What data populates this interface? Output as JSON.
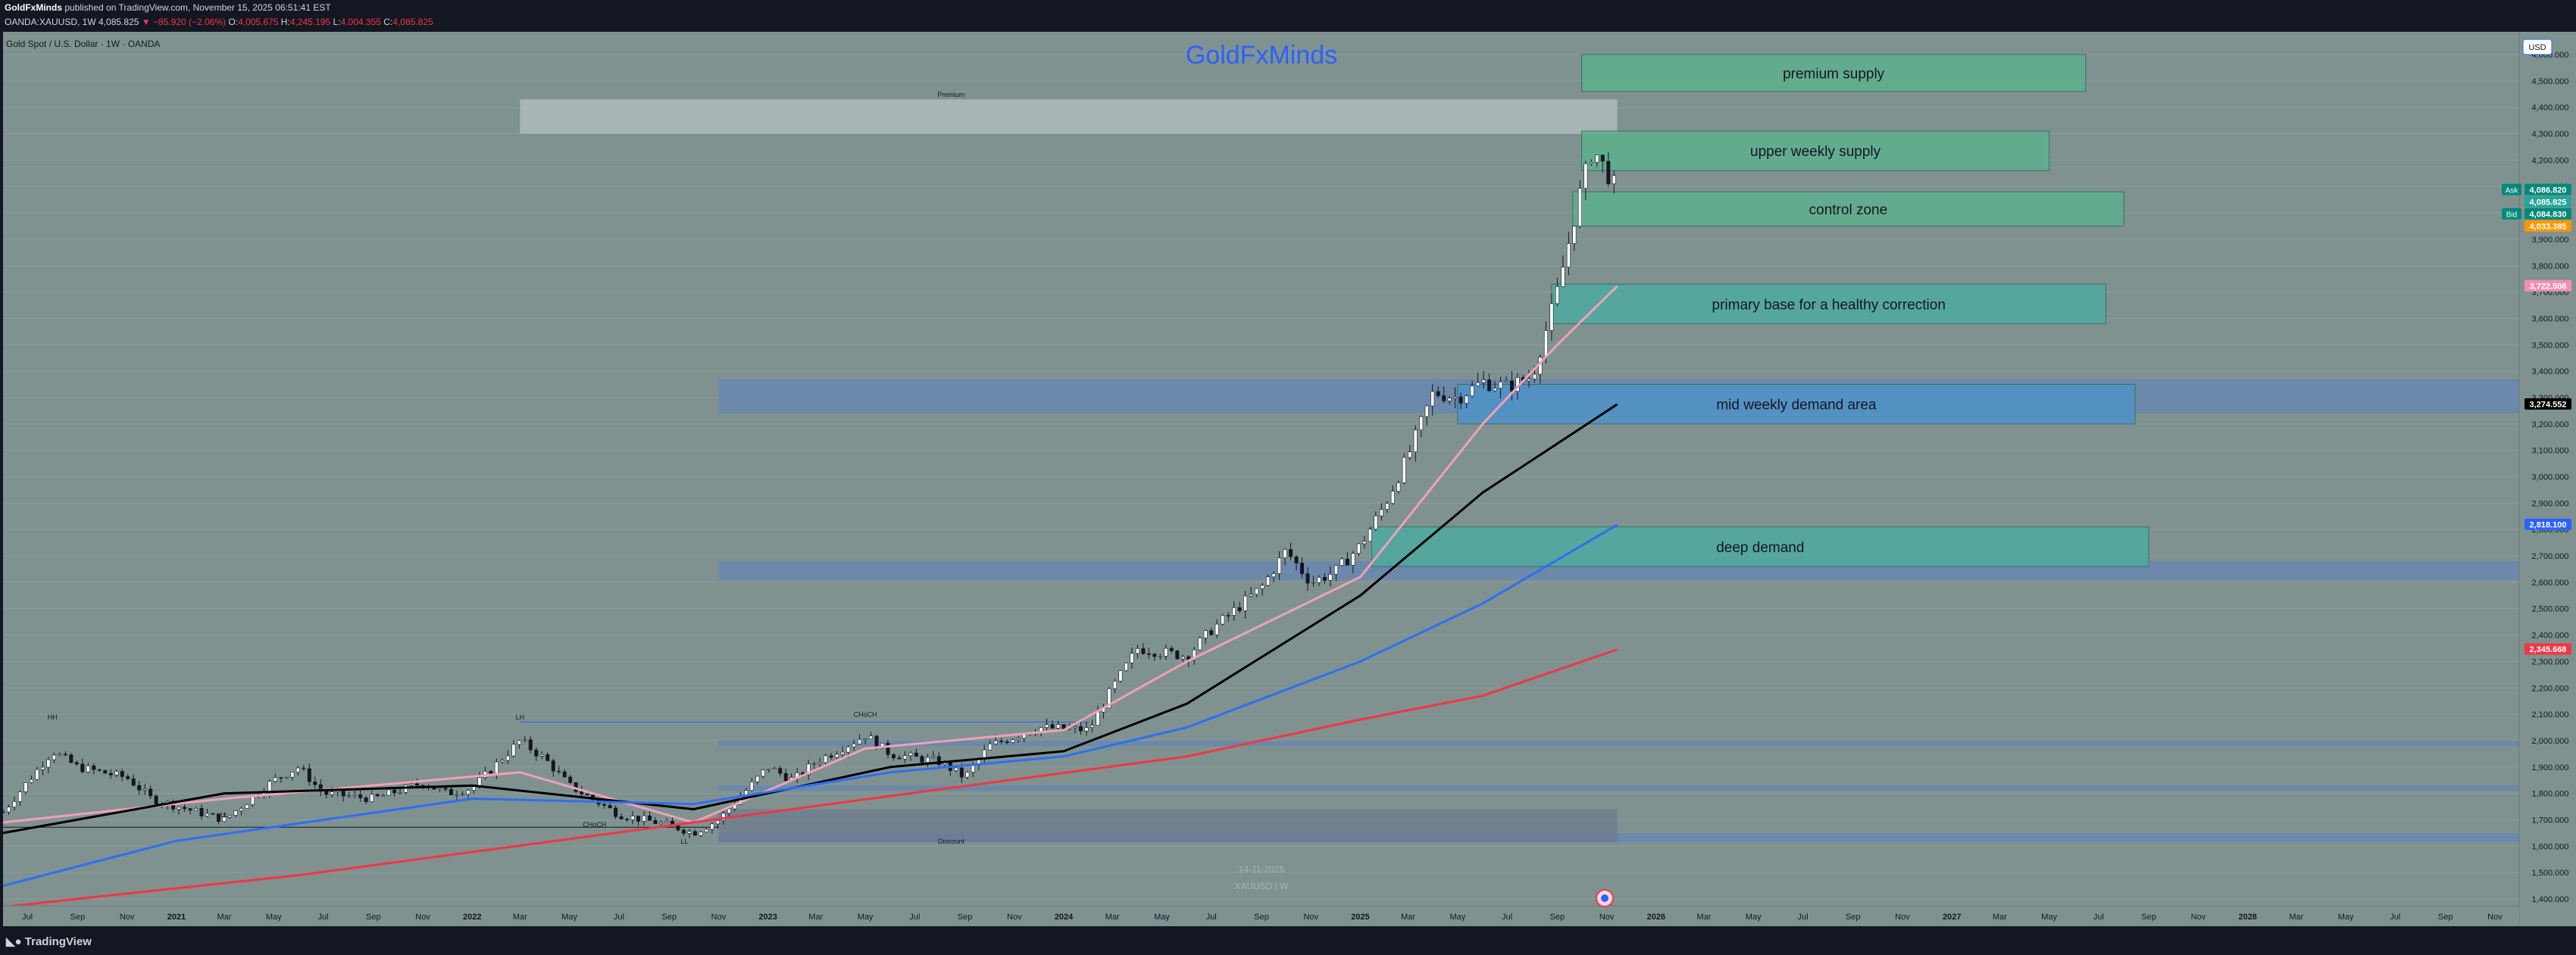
{
  "header": {
    "author": "GoldFxMinds",
    "published": "published on TradingView.com, November 15, 2025 06:51:41 EST",
    "symbol": "OANDA:XAUUSD, 1W",
    "last": "4,085.825",
    "change": "▼ −85.920 (−2.06%)",
    "o_label": "O:",
    "o": "4,005.675",
    "h_label": "H:",
    "h": "4,245.195",
    "l_label": "L:",
    "l": "4,004.355",
    "c_label": "C:",
    "c": "4,085.825"
  },
  "chart_title": "Gold Spot / U.S. Dollar · 1W · OANDA",
  "watermark": "GoldFxMinds",
  "footer_watermark": [
    "14-11-2025",
    "XAUUSD | W"
  ],
  "bottom_logo": "TradingView",
  "currency": "USD",
  "colors": {
    "background": "#7f9290",
    "bar": "#131722",
    "zone_green": "#4fae8e",
    "zone_blue": "#3d86c6",
    "ema_pink": "#f2a0b5",
    "ema_black": "#000000",
    "ema_blue": "#2e6ff2",
    "ema_red": "#f23645"
  },
  "chart_data": {
    "type": "candlestick",
    "timeframe": "1W",
    "ylim": [
      1400,
      4600
    ],
    "yticks": [
      "4,600.000",
      "4,500.000",
      "4,400.000",
      "4,300.000",
      "4,200.000",
      "4,100.000",
      "4,000.000",
      "3,900.000",
      "3,800.000",
      "3,700.000",
      "3,600.000",
      "3,500.000",
      "3,400.000",
      "3,300.000",
      "3,200.000",
      "3,100.000",
      "3,000.000",
      "2,900.000",
      "2,800.000",
      "2,700.000",
      "2,600.000",
      "2,500.000",
      "2,400.000",
      "2,300.000",
      "2,200.000",
      "2,100.000",
      "2,000.000",
      "1,900.000",
      "1,800.000",
      "1,700.000",
      "1,600.000",
      "1,500.000",
      "1,400.000"
    ],
    "xlim": [
      "2020-06-01",
      "2028-12-01"
    ],
    "xticks": [
      {
        "d": "2020-07-01",
        "l": "Jul"
      },
      {
        "d": "2020-09-01",
        "l": "Sep"
      },
      {
        "d": "2020-11-01",
        "l": "Nov"
      },
      {
        "d": "2021-01-01",
        "l": "2021"
      },
      {
        "d": "2021-03-01",
        "l": "Mar"
      },
      {
        "d": "2021-05-01",
        "l": "May"
      },
      {
        "d": "2021-07-01",
        "l": "Jul"
      },
      {
        "d": "2021-09-01",
        "l": "Sep"
      },
      {
        "d": "2021-11-01",
        "l": "Nov"
      },
      {
        "d": "2022-01-01",
        "l": "2022"
      },
      {
        "d": "2022-03-01",
        "l": "Mar"
      },
      {
        "d": "2022-05-01",
        "l": "May"
      },
      {
        "d": "2022-07-01",
        "l": "Jul"
      },
      {
        "d": "2022-09-01",
        "l": "Sep"
      },
      {
        "d": "2022-11-01",
        "l": "Nov"
      },
      {
        "d": "2023-01-01",
        "l": "2023"
      },
      {
        "d": "2023-03-01",
        "l": "Mar"
      },
      {
        "d": "2023-05-01",
        "l": "May"
      },
      {
        "d": "2023-07-01",
        "l": "Jul"
      },
      {
        "d": "2023-09-01",
        "l": "Sep"
      },
      {
        "d": "2023-11-01",
        "l": "Nov"
      },
      {
        "d": "2024-01-01",
        "l": "2024"
      },
      {
        "d": "2024-03-01",
        "l": "Mar"
      },
      {
        "d": "2024-05-01",
        "l": "May"
      },
      {
        "d": "2024-07-01",
        "l": "Jul"
      },
      {
        "d": "2024-09-01",
        "l": "Sep"
      },
      {
        "d": "2024-11-01",
        "l": "Nov"
      },
      {
        "d": "2025-01-01",
        "l": "2025"
      },
      {
        "d": "2025-03-01",
        "l": "Mar"
      },
      {
        "d": "2025-05-01",
        "l": "May"
      },
      {
        "d": "2025-07-01",
        "l": "Jul"
      },
      {
        "d": "2025-09-01",
        "l": "Sep"
      },
      {
        "d": "2025-11-01",
        "l": "Nov"
      },
      {
        "d": "2026-01-01",
        "l": "2026"
      },
      {
        "d": "2026-03-01",
        "l": "Mar"
      },
      {
        "d": "2026-05-01",
        "l": "May"
      },
      {
        "d": "2026-07-01",
        "l": "Jul"
      },
      {
        "d": "2026-09-01",
        "l": "Sep"
      },
      {
        "d": "2026-11-01",
        "l": "Nov"
      },
      {
        "d": "2027-01-01",
        "l": "2027"
      },
      {
        "d": "2027-03-01",
        "l": "Mar"
      },
      {
        "d": "2027-05-01",
        "l": "May"
      },
      {
        "d": "2027-07-01",
        "l": "Jul"
      },
      {
        "d": "2027-09-01",
        "l": "Sep"
      },
      {
        "d": "2027-11-01",
        "l": "Nov"
      },
      {
        "d": "2028-01-01",
        "l": "2028"
      },
      {
        "d": "2028-03-01",
        "l": "Mar"
      },
      {
        "d": "2028-05-01",
        "l": "May"
      },
      {
        "d": "2028-07-01",
        "l": "Jul"
      },
      {
        "d": "2028-09-01",
        "l": "Sep"
      },
      {
        "d": "2028-11-01",
        "l": "Nov"
      }
    ],
    "price_path": [
      [
        "2020-06-01",
        1730
      ],
      [
        "2020-08-01",
        1960
      ],
      [
        "2020-09-01",
        1900
      ],
      [
        "2020-11-01",
        1860
      ],
      [
        "2020-12-01",
        1780
      ],
      [
        "2021-03-01",
        1700
      ],
      [
        "2021-05-01",
        1850
      ],
      [
        "2021-06-01",
        1900
      ],
      [
        "2021-07-01",
        1800
      ],
      [
        "2021-09-01",
        1780
      ],
      [
        "2021-11-01",
        1840
      ],
      [
        "2021-12-01",
        1800
      ],
      [
        "2022-01-01",
        1820
      ],
      [
        "2022-03-01",
        2000
      ],
      [
        "2022-04-01",
        1930
      ],
      [
        "2022-05-01",
        1830
      ],
      [
        "2022-07-01",
        1720
      ],
      [
        "2022-09-01",
        1680
      ],
      [
        "2022-10-01",
        1650
      ],
      [
        "2022-11-01",
        1700
      ],
      [
        "2023-01-01",
        1900
      ],
      [
        "2023-02-01",
        1850
      ],
      [
        "2023-03-01",
        1920
      ],
      [
        "2023-05-01",
        2020
      ],
      [
        "2023-06-01",
        1950
      ],
      [
        "2023-08-01",
        1920
      ],
      [
        "2023-09-01",
        1860
      ],
      [
        "2023-10-01",
        1980
      ],
      [
        "2023-12-01",
        2050
      ],
      [
        "2024-02-01",
        2040
      ],
      [
        "2024-03-01",
        2200
      ],
      [
        "2024-04-01",
        2350
      ],
      [
        "2024-06-01",
        2320
      ],
      [
        "2024-07-01",
        2420
      ],
      [
        "2024-09-01",
        2580
      ],
      [
        "2024-10-01",
        2720
      ],
      [
        "2024-11-01",
        2600
      ],
      [
        "2024-12-01",
        2640
      ],
      [
        "2025-01-01",
        2740
      ],
      [
        "2025-02-01",
        2900
      ],
      [
        "2025-03-01",
        3080
      ],
      [
        "2025-04-01",
        3320
      ],
      [
        "2025-05-01",
        3300
      ],
      [
        "2025-06-01",
        3360
      ],
      [
        "2025-07-01",
        3340
      ],
      [
        "2025-08-01",
        3380
      ],
      [
        "2025-09-01",
        3700
      ],
      [
        "2025-10-01",
        4100
      ],
      [
        "2025-10-15",
        4245
      ],
      [
        "2025-11-14",
        4085
      ]
    ],
    "emas": [
      {
        "color": "pink",
        "values": [
          [
            "2020-06-01",
            1690
          ],
          [
            "2021-03-01",
            1780
          ],
          [
            "2022-03-01",
            1880
          ],
          [
            "2022-10-01",
            1690
          ],
          [
            "2023-05-01",
            1970
          ],
          [
            "2024-01-01",
            2040
          ],
          [
            "2024-06-01",
            2300
          ],
          [
            "2025-01-01",
            2620
          ],
          [
            "2025-06-01",
            3200
          ],
          [
            "2025-09-01",
            3500
          ],
          [
            "2025-11-14",
            3722.508
          ]
        ]
      },
      {
        "color": "black",
        "values": [
          [
            "2020-06-01",
            1650
          ],
          [
            "2021-03-01",
            1800
          ],
          [
            "2022-01-01",
            1830
          ],
          [
            "2022-10-01",
            1740
          ],
          [
            "2023-06-01",
            1900
          ],
          [
            "2024-01-01",
            1960
          ],
          [
            "2024-06-01",
            2140
          ],
          [
            "2025-01-01",
            2550
          ],
          [
            "2025-06-01",
            2940
          ],
          [
            "2025-11-14",
            3274.552
          ]
        ]
      },
      {
        "color": "blue",
        "values": [
          [
            "2020-06-01",
            1450
          ],
          [
            "2021-01-01",
            1620
          ],
          [
            "2022-01-01",
            1780
          ],
          [
            "2022-10-01",
            1760
          ],
          [
            "2023-06-01",
            1880
          ],
          [
            "2024-01-01",
            1940
          ],
          [
            "2024-06-01",
            2050
          ],
          [
            "2025-01-01",
            2300
          ],
          [
            "2025-06-01",
            2520
          ],
          [
            "2025-11-14",
            2818.1
          ]
        ]
      },
      {
        "color": "red",
        "values": [
          [
            "2020-06-01",
            1370
          ],
          [
            "2021-06-01",
            1490
          ],
          [
            "2022-06-01",
            1640
          ],
          [
            "2023-06-01",
            1790
          ],
          [
            "2024-06-01",
            1940
          ],
          [
            "2025-01-01",
            2080
          ],
          [
            "2025-06-01",
            2170
          ],
          [
            "2025-11-14",
            2345.668
          ]
        ]
      }
    ],
    "zones": [
      {
        "label": "premium supply",
        "from": "2025-10-01",
        "to": "2027-06-15",
        "low": 4460,
        "high": 4600,
        "color": "green"
      },
      {
        "label": "upper weekly supply",
        "from": "2025-10-01",
        "to": "2027-05-01",
        "low": 4160,
        "high": 4310,
        "color": "green"
      },
      {
        "label": "control zone",
        "from": "2025-09-20",
        "to": "2027-08-01",
        "low": 3950,
        "high": 4080,
        "color": "green"
      },
      {
        "label": "primary base for a healthy correction",
        "from": "2025-08-25",
        "to": "2027-07-10",
        "low": 3580,
        "high": 3730,
        "color": "teal"
      },
      {
        "label": "mid weekly demand area",
        "from": "2025-05-01",
        "to": "2027-08-15",
        "low": 3200,
        "high": 3350,
        "color": "blue"
      },
      {
        "label": "deep demand",
        "from": "2025-01-15",
        "to": "2027-09-01",
        "low": 2660,
        "high": 2810,
        "color": "teal"
      }
    ],
    "price_labels": [
      {
        "price": 4086.82,
        "text": "4,086.820",
        "tag": "Ask",
        "color": "#00897b"
      },
      {
        "price": 4085.825,
        "text": "4,085.825",
        "color": "#26a69a"
      },
      {
        "price": 4084.83,
        "text": "4,084.830",
        "tag": "Bid",
        "color": "#00897b"
      },
      {
        "price": 4033.385,
        "text": "4,033.385",
        "color": "#ff9800"
      },
      {
        "price": 3722.508,
        "text": "3,722.508",
        "color": "#f48fb1"
      },
      {
        "price": 3274.552,
        "text": "3,274.552",
        "color": "#000000"
      },
      {
        "price": 2818.1,
        "text": "2,818.100",
        "color": "#2962ff"
      },
      {
        "price": 2345.668,
        "text": "2,345.668",
        "color": "#f23645"
      }
    ],
    "annotations": [
      {
        "text": "Premium",
        "date": "2023-08-15",
        "price": 4440
      },
      {
        "text": "Discount",
        "date": "2023-08-15",
        "price": 1610
      },
      {
        "text": "CHoCH",
        "date": "2022-06-01",
        "price": 1672
      },
      {
        "text": "CHoCH",
        "date": "2023-05-01",
        "price": 2090
      },
      {
        "text": "HH",
        "date": "2020-08-01",
        "price": 2080
      },
      {
        "text": "LH",
        "date": "2022-03-01",
        "price": 2080
      },
      {
        "text": "LL",
        "date": "2022-09-20",
        "price": 1610
      },
      {
        "text": "LL",
        "date": "2021-03-01",
        "price": 1710
      }
    ]
  }
}
